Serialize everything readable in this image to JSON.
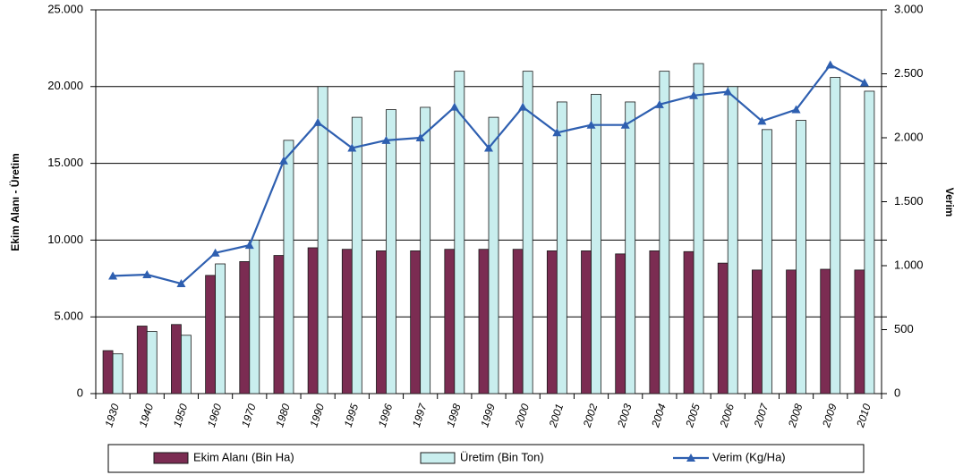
{
  "chart_data": {
    "type": "bar-line",
    "y_label": "Ekim Alanı - Üretim",
    "y2_label": "Verim",
    "categories": [
      "1930",
      "1940",
      "1950",
      "1960",
      "1970",
      "1980",
      "1990",
      "1995",
      "1996",
      "1997",
      "1998",
      "1999",
      "2000",
      "2001",
      "2002",
      "2003",
      "2004",
      "2005",
      "2006",
      "2007",
      "2008",
      "2009",
      "2010"
    ],
    "series": [
      {
        "name": "Ekim Alanı (Bin Ha)",
        "color": "#7b2c52",
        "kind": "bar",
        "values": [
          2800,
          4400,
          4500,
          7700,
          8600,
          9000,
          9500,
          9400,
          9300,
          9300,
          9400,
          9400,
          9400,
          9300,
          9300,
          9100,
          9300,
          9250,
          8500,
          8050,
          8050,
          8100,
          8050
        ]
      },
      {
        "name": "Üretim (Bin Ton)",
        "color": "#c9eeee",
        "kind": "bar",
        "values": [
          2600,
          4050,
          3800,
          8450,
          10000,
          16500,
          20000,
          18000,
          18500,
          18650,
          21000,
          18000,
          21000,
          19000,
          19500,
          19000,
          21000,
          21500,
          20000,
          17200,
          17800,
          20600,
          19700
        ]
      },
      {
        "name": "Verim (Kg/Ha)",
        "color": "#2e5fb0",
        "kind": "line",
        "axis": "y2",
        "values": [
          920,
          930,
          860,
          1100,
          1160,
          1820,
          2120,
          1920,
          1980,
          2000,
          2240,
          1920,
          2240,
          2040,
          2100,
          2100,
          2260,
          2330,
          2360,
          2130,
          2220,
          2570,
          2430
        ]
      }
    ],
    "ylim": [
      0,
      25000
    ],
    "yticks": [
      0,
      {
        "value": 5000,
        "label": "5.000"
      },
      {
        "value": 10000,
        "label": "10.000"
      },
      {
        "value": 15000,
        "label": "15.000"
      },
      {
        "value": 20000,
        "label": "20.000"
      },
      {
        "value": 25000,
        "label": "25.000"
      }
    ],
    "y2lim": [
      0,
      3000
    ],
    "y2ticks": [
      0,
      500,
      {
        "value": 1000,
        "label": "1.000"
      },
      {
        "value": 1500,
        "label": "1.500"
      },
      {
        "value": 2000,
        "label": "2.000"
      },
      {
        "value": 2500,
        "label": "2.500"
      },
      {
        "value": 3000,
        "label": "3.000"
      }
    ],
    "grid": true
  }
}
